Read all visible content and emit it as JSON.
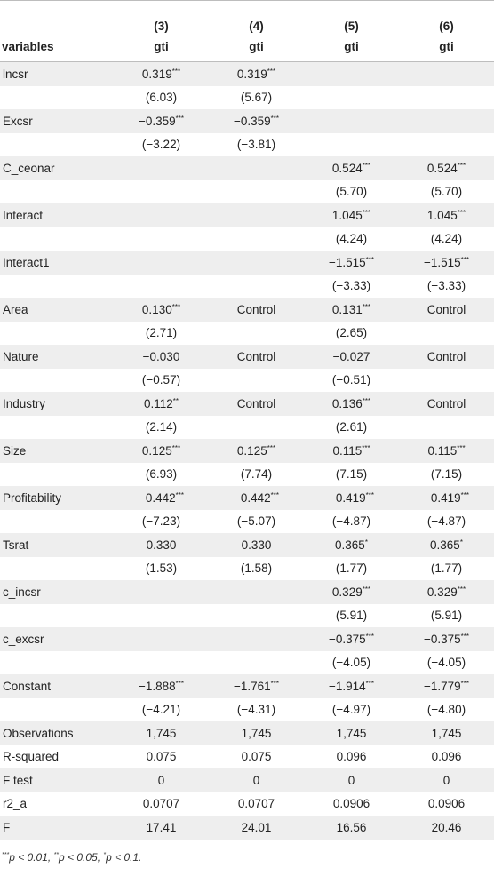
{
  "header": {
    "row1": [
      "",
      "(3)",
      "(4)",
      "(5)",
      "(6)"
    ],
    "row2": [
      "variables",
      "gti",
      "gti",
      "gti",
      "gti"
    ]
  },
  "rows": [
    {
      "label": "lncsr",
      "cells": [
        [
          "0.319",
          "***"
        ],
        [
          "0.319",
          "***"
        ],
        [
          "",
          ""
        ],
        [
          "",
          ""
        ]
      ]
    },
    {
      "label": "",
      "cells": [
        [
          "(6.03)",
          ""
        ],
        [
          "(5.67)",
          ""
        ],
        [
          "",
          ""
        ],
        [
          "",
          ""
        ]
      ]
    },
    {
      "label": "Excsr",
      "cells": [
        [
          "−0.359",
          "***"
        ],
        [
          "−0.359",
          "***"
        ],
        [
          "",
          ""
        ],
        [
          "",
          ""
        ]
      ]
    },
    {
      "label": "",
      "cells": [
        [
          "(−3.22)",
          ""
        ],
        [
          "(−3.81)",
          ""
        ],
        [
          "",
          ""
        ],
        [
          "",
          ""
        ]
      ]
    },
    {
      "label": "C_ceonar",
      "cells": [
        [
          "",
          ""
        ],
        [
          "",
          ""
        ],
        [
          "0.524",
          "***"
        ],
        [
          "0.524",
          "***"
        ]
      ]
    },
    {
      "label": "",
      "cells": [
        [
          "",
          ""
        ],
        [
          "",
          ""
        ],
        [
          "(5.70)",
          ""
        ],
        [
          "(5.70)",
          ""
        ]
      ]
    },
    {
      "label": "Interact",
      "cells": [
        [
          "",
          ""
        ],
        [
          "",
          ""
        ],
        [
          "1.045",
          "***"
        ],
        [
          "1.045",
          "***"
        ]
      ]
    },
    {
      "label": "",
      "cells": [
        [
          "",
          ""
        ],
        [
          "",
          ""
        ],
        [
          "(4.24)",
          ""
        ],
        [
          "(4.24)",
          ""
        ]
      ]
    },
    {
      "label": "Interact1",
      "cells": [
        [
          "",
          ""
        ],
        [
          "",
          ""
        ],
        [
          "−1.515",
          "***"
        ],
        [
          "−1.515",
          "***"
        ]
      ]
    },
    {
      "label": "",
      "cells": [
        [
          "",
          ""
        ],
        [
          "",
          ""
        ],
        [
          "(−3.33)",
          ""
        ],
        [
          "(−3.33)",
          ""
        ]
      ]
    },
    {
      "label": "Area",
      "cells": [
        [
          "0.130",
          "***"
        ],
        [
          "Control",
          ""
        ],
        [
          "0.131",
          "***"
        ],
        [
          "Control",
          ""
        ]
      ]
    },
    {
      "label": "",
      "cells": [
        [
          "(2.71)",
          ""
        ],
        [
          "",
          ""
        ],
        [
          "(2.65)",
          ""
        ],
        [
          "",
          ""
        ]
      ]
    },
    {
      "label": "Nature",
      "cells": [
        [
          "−0.030",
          ""
        ],
        [
          "Control",
          ""
        ],
        [
          "−0.027",
          ""
        ],
        [
          "Control",
          ""
        ]
      ]
    },
    {
      "label": "",
      "cells": [
        [
          "(−0.57)",
          ""
        ],
        [
          "",
          ""
        ],
        [
          "(−0.51)",
          ""
        ],
        [
          "",
          ""
        ]
      ]
    },
    {
      "label": "Industry",
      "cells": [
        [
          "0.112",
          "**"
        ],
        [
          "Control",
          ""
        ],
        [
          "0.136",
          "***"
        ],
        [
          "Control",
          ""
        ]
      ]
    },
    {
      "label": "",
      "cells": [
        [
          "(2.14)",
          ""
        ],
        [
          "",
          ""
        ],
        [
          "(2.61)",
          ""
        ],
        [
          "",
          ""
        ]
      ]
    },
    {
      "label": "Size",
      "cells": [
        [
          "0.125",
          "***"
        ],
        [
          "0.125",
          "***"
        ],
        [
          "0.115",
          "***"
        ],
        [
          "0.115",
          "***"
        ]
      ]
    },
    {
      "label": "",
      "cells": [
        [
          "(6.93)",
          ""
        ],
        [
          "(7.74)",
          ""
        ],
        [
          "(7.15)",
          ""
        ],
        [
          "(7.15)",
          ""
        ]
      ]
    },
    {
      "label": "Profitability",
      "cells": [
        [
          "−0.442",
          "***"
        ],
        [
          "−0.442",
          "***"
        ],
        [
          "−0.419",
          "***"
        ],
        [
          "−0.419",
          "***"
        ]
      ]
    },
    {
      "label": "",
      "cells": [
        [
          "(−7.23)",
          ""
        ],
        [
          "(−5.07)",
          ""
        ],
        [
          "(−4.87)",
          ""
        ],
        [
          "(−4.87)",
          ""
        ]
      ]
    },
    {
      "label": "Tsrat",
      "cells": [
        [
          "0.330",
          ""
        ],
        [
          "0.330",
          ""
        ],
        [
          "0.365",
          "*"
        ],
        [
          "0.365",
          "*"
        ]
      ]
    },
    {
      "label": "",
      "cells": [
        [
          "(1.53)",
          ""
        ],
        [
          "(1.58)",
          ""
        ],
        [
          "(1.77)",
          ""
        ],
        [
          "(1.77)",
          ""
        ]
      ]
    },
    {
      "label": "c_incsr",
      "cells": [
        [
          "",
          ""
        ],
        [
          "",
          ""
        ],
        [
          "0.329",
          "***"
        ],
        [
          "0.329",
          "***"
        ]
      ]
    },
    {
      "label": "",
      "cells": [
        [
          "",
          ""
        ],
        [
          "",
          ""
        ],
        [
          "(5.91)",
          ""
        ],
        [
          "(5.91)",
          ""
        ]
      ]
    },
    {
      "label": "c_excsr",
      "cells": [
        [
          "",
          ""
        ],
        [
          "",
          ""
        ],
        [
          "−0.375",
          "***"
        ],
        [
          "−0.375",
          "***"
        ]
      ]
    },
    {
      "label": "",
      "cells": [
        [
          "",
          ""
        ],
        [
          "",
          ""
        ],
        [
          "(−4.05)",
          ""
        ],
        [
          "(−4.05)",
          ""
        ]
      ]
    },
    {
      "label": "Constant",
      "cells": [
        [
          "−1.888",
          "***"
        ],
        [
          "−1.761",
          "***"
        ],
        [
          "−1.914",
          "***"
        ],
        [
          "−1.779",
          "***"
        ]
      ]
    },
    {
      "label": "",
      "cells": [
        [
          "(−4.21)",
          ""
        ],
        [
          "(−4.31)",
          ""
        ],
        [
          "(−4.97)",
          ""
        ],
        [
          "(−4.80)",
          ""
        ]
      ]
    },
    {
      "label": "Observations",
      "cells": [
        [
          "1,745",
          ""
        ],
        [
          "1,745",
          ""
        ],
        [
          "1,745",
          ""
        ],
        [
          "1,745",
          ""
        ]
      ]
    },
    {
      "label": "R-squared",
      "cells": [
        [
          "0.075",
          ""
        ],
        [
          "0.075",
          ""
        ],
        [
          "0.096",
          ""
        ],
        [
          "0.096",
          ""
        ]
      ]
    },
    {
      "label": "F test",
      "cells": [
        [
          "0",
          ""
        ],
        [
          "0",
          ""
        ],
        [
          "0",
          ""
        ],
        [
          "0",
          ""
        ]
      ]
    },
    {
      "label": "r2_a",
      "cells": [
        [
          "0.0707",
          ""
        ],
        [
          "0.0707",
          ""
        ],
        [
          "0.0906",
          ""
        ],
        [
          "0.0906",
          ""
        ]
      ]
    },
    {
      "label": "F",
      "cells": [
        [
          "17.41",
          ""
        ],
        [
          "24.01",
          ""
        ],
        [
          "16.56",
          ""
        ],
        [
          "20.46",
          ""
        ]
      ]
    }
  ],
  "footnote": [
    {
      "sup": "***",
      "text": "p < 0.01, "
    },
    {
      "sup": "**",
      "text": "p < 0.05, "
    },
    {
      "sup": "*",
      "text": "p < 0.1."
    }
  ]
}
